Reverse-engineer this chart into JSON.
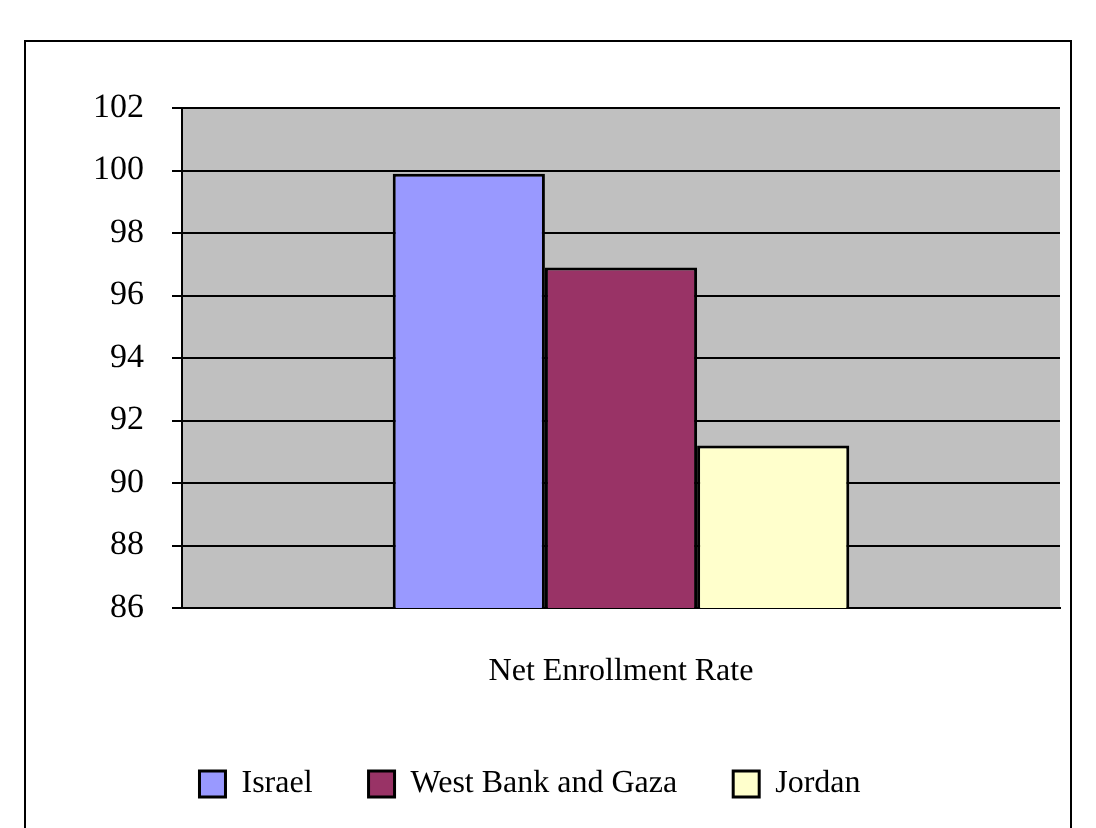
{
  "chart_data": {
    "type": "bar",
    "categories": [
      "Net Enrollment Rate"
    ],
    "series": [
      {
        "name": "Israel",
        "color": "#9999ff",
        "values": [
          99.9
        ]
      },
      {
        "name": "West Bank and Gaza",
        "color": "#993366",
        "values": [
          96.9
        ]
      },
      {
        "name": "Jordan",
        "color": "#ffffcc",
        "values": [
          91.2
        ]
      }
    ],
    "ylim": [
      86,
      102
    ],
    "yticks": [
      86,
      88,
      90,
      92,
      94,
      96,
      98,
      100,
      102
    ],
    "grid": "y",
    "legend": "bottom"
  }
}
